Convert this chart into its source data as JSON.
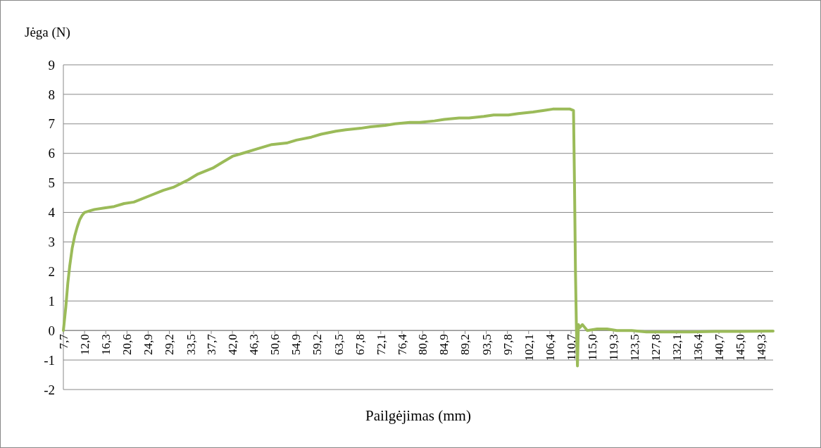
{
  "chart_data": {
    "type": "line",
    "ylabel": "Jėga (N)",
    "xlabel": "Pailgėjimas (mm)",
    "xlim": [
      7.7,
      151.7
    ],
    "ylim": [
      -2,
      9
    ],
    "yticks": [
      -2,
      -1,
      0,
      1,
      2,
      3,
      4,
      5,
      6,
      7,
      8,
      9
    ],
    "xticks": [
      {
        "value": 7.7,
        "label": "7,7"
      },
      {
        "value": 12.0,
        "label": "12,0"
      },
      {
        "value": 16.3,
        "label": "16,3"
      },
      {
        "value": 20.6,
        "label": "20,6"
      },
      {
        "value": 24.9,
        "label": "24,9"
      },
      {
        "value": 29.2,
        "label": "29,2"
      },
      {
        "value": 33.5,
        "label": "33,5"
      },
      {
        "value": 37.7,
        "label": "37,7"
      },
      {
        "value": 42.0,
        "label": "42,0"
      },
      {
        "value": 46.3,
        "label": "46,3"
      },
      {
        "value": 50.6,
        "label": "50,6"
      },
      {
        "value": 54.9,
        "label": "54,9"
      },
      {
        "value": 59.2,
        "label": "59,2"
      },
      {
        "value": 63.5,
        "label": "63,5"
      },
      {
        "value": 67.8,
        "label": "67,8"
      },
      {
        "value": 72.1,
        "label": "72,1"
      },
      {
        "value": 76.4,
        "label": "76,4"
      },
      {
        "value": 80.6,
        "label": "80,6"
      },
      {
        "value": 84.9,
        "label": "84,9"
      },
      {
        "value": 89.2,
        "label": "89,2"
      },
      {
        "value": 93.5,
        "label": "93,5"
      },
      {
        "value": 97.8,
        "label": "97,8"
      },
      {
        "value": 102.1,
        "label": "102,1"
      },
      {
        "value": 106.4,
        "label": "106,4"
      },
      {
        "value": 110.7,
        "label": "110,7"
      },
      {
        "value": 115.0,
        "label": "115,0"
      },
      {
        "value": 119.3,
        "label": "119,3"
      },
      {
        "value": 123.5,
        "label": "123,5"
      },
      {
        "value": 127.8,
        "label": "127,8"
      },
      {
        "value": 132.1,
        "label": "132,1"
      },
      {
        "value": 136.4,
        "label": "136,4"
      },
      {
        "value": 140.7,
        "label": "140,7"
      },
      {
        "value": 145.0,
        "label": "145,0"
      },
      {
        "value": 149.3,
        "label": "149,3"
      }
    ],
    "grid": "y",
    "marker": "none",
    "line_style": "solid",
    "series": [
      {
        "color": "#9bbb59",
        "x": [
          7.7,
          8.2,
          8.6,
          9.0,
          9.5,
          10.0,
          10.5,
          11.0,
          11.5,
          12.0,
          13.0,
          14.0,
          16.0,
          18.0,
          20.0,
          22.0,
          25.0,
          28.0,
          30.0,
          33.0,
          35.0,
          38.0,
          40.0,
          42.0,
          44.0,
          47.0,
          50.0,
          53.0,
          55.0,
          58.0,
          60.0,
          63.0,
          65.0,
          68.0,
          70.0,
          73.0,
          75.0,
          78.0,
          80.0,
          83.0,
          85.0,
          88.0,
          90.0,
          93.0,
          95.0,
          98.0,
          100.0,
          103.0,
          105.0,
          107.0,
          109.0,
          110.5,
          111.2,
          111.4,
          111.6,
          111.8,
          112.0,
          112.2,
          112.5,
          113.0,
          114.0,
          116.0,
          118.0,
          120.0,
          123.0,
          126.0,
          130.0,
          135.0,
          140.0,
          145.0,
          151.7
        ],
        "values": [
          0.0,
          0.8,
          1.6,
          2.2,
          2.8,
          3.2,
          3.5,
          3.75,
          3.9,
          4.0,
          4.05,
          4.1,
          4.15,
          4.2,
          4.3,
          4.35,
          4.55,
          4.75,
          4.85,
          5.1,
          5.3,
          5.5,
          5.7,
          5.9,
          6.0,
          6.15,
          6.3,
          6.35,
          6.45,
          6.55,
          6.65,
          6.75,
          6.8,
          6.85,
          6.9,
          6.95,
          7.0,
          7.05,
          7.05,
          7.1,
          7.15,
          7.2,
          7.2,
          7.25,
          7.3,
          7.3,
          7.35,
          7.4,
          7.45,
          7.5,
          7.5,
          7.5,
          7.45,
          5.0,
          2.0,
          0.0,
          -1.2,
          0.2,
          0.1,
          0.2,
          0.0,
          0.05,
          0.05,
          0.0,
          0.0,
          -0.05,
          -0.05,
          -0.05,
          -0.03,
          -0.03,
          -0.02
        ]
      }
    ]
  }
}
